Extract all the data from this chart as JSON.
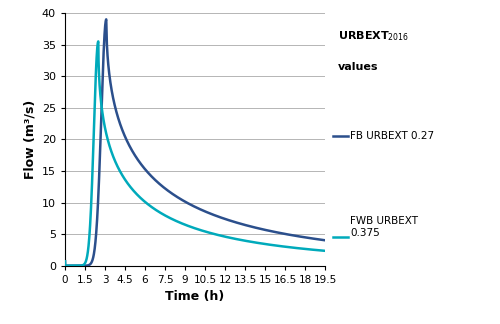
{
  "fb_color": "#2b4f8c",
  "fwb_color": "#00aabb",
  "ylabel": "Flow (m³/s)",
  "xlabel": "Time (h)",
  "ylim": [
    0,
    40
  ],
  "xlim": [
    0,
    19.5
  ],
  "yticks": [
    0,
    5,
    10,
    15,
    20,
    25,
    30,
    35,
    40
  ],
  "xticks": [
    0,
    1.5,
    3,
    4.5,
    6,
    7.5,
    9,
    10.5,
    12,
    13.5,
    15,
    16.5,
    18,
    19.5
  ],
  "xtick_labels": [
    "0",
    "1.5",
    "3",
    "4.5",
    "6",
    "7.5",
    "9",
    "10.5",
    "12",
    "13.5",
    "15",
    "16.5",
    "18",
    "19.5"
  ],
  "legend_fb": "FB URBEXT 0.27",
  "legend_fwb": "FWB URBEXT\n0.375",
  "fb_peak_t": 3.1,
  "fb_peak_v": 39.0,
  "fwb_peak_t": 2.5,
  "fwb_peak_v": 35.5,
  "line_width": 1.8,
  "fb_rise_k": 3.5,
  "fb_fall_k": 0.055,
  "fb_fall_exp": 1.0,
  "fwb_rise_k": 4.5,
  "fwb_fall_k": 0.1,
  "fwb_fall_exp": 1.0
}
